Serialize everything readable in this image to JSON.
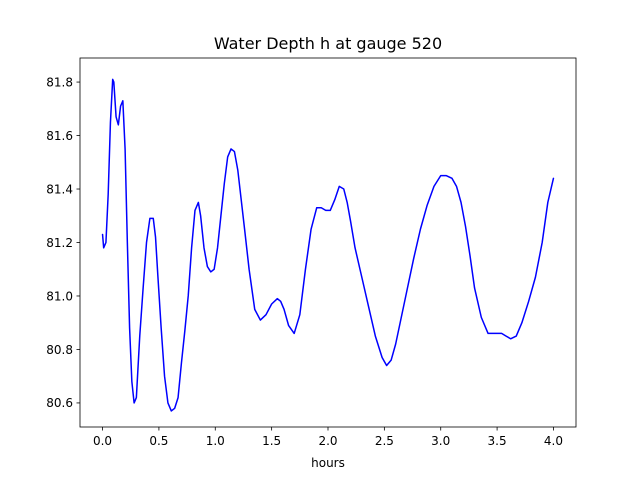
{
  "chart_data": {
    "type": "line",
    "title": "Water Depth h at gauge 520",
    "xlabel": "hours",
    "ylabel": "",
    "xlim": [
      -0.2,
      4.2
    ],
    "ylim": [
      80.51,
      81.89
    ],
    "xticks": [
      0.0,
      0.5,
      1.0,
      1.5,
      2.0,
      2.5,
      3.0,
      3.5,
      4.0
    ],
    "xtick_labels": [
      "0.0",
      "0.5",
      "1.0",
      "1.5",
      "2.0",
      "2.5",
      "3.0",
      "3.5",
      "4.0"
    ],
    "yticks": [
      80.6,
      80.8,
      81.0,
      81.2,
      81.4,
      81.6,
      81.8
    ],
    "ytick_labels": [
      "80.6",
      "80.8",
      "81.0",
      "81.2",
      "81.4",
      "81.6",
      "81.8"
    ],
    "grid": false,
    "series": [
      {
        "color": "#0000ff",
        "x": [
          0.0,
          0.01,
          0.03,
          0.05,
          0.07,
          0.09,
          0.1,
          0.12,
          0.14,
          0.16,
          0.18,
          0.2,
          0.22,
          0.24,
          0.26,
          0.28,
          0.3,
          0.33,
          0.36,
          0.39,
          0.42,
          0.45,
          0.47,
          0.49,
          0.52,
          0.55,
          0.58,
          0.61,
          0.64,
          0.67,
          0.7,
          0.73,
          0.76,
          0.79,
          0.82,
          0.85,
          0.87,
          0.9,
          0.93,
          0.96,
          0.99,
          1.02,
          1.05,
          1.08,
          1.11,
          1.14,
          1.17,
          1.2,
          1.23,
          1.26,
          1.3,
          1.35,
          1.4,
          1.45,
          1.5,
          1.55,
          1.58,
          1.61,
          1.65,
          1.7,
          1.75,
          1.8,
          1.85,
          1.9,
          1.94,
          1.98,
          2.02,
          2.06,
          2.1,
          2.14,
          2.17,
          2.2,
          2.24,
          2.3,
          2.36,
          2.42,
          2.48,
          2.52,
          2.56,
          2.6,
          2.64,
          2.7,
          2.76,
          2.82,
          2.88,
          2.94,
          3.0,
          3.05,
          3.1,
          3.14,
          3.18,
          3.22,
          3.26,
          3.3,
          3.36,
          3.42,
          3.48,
          3.54,
          3.58,
          3.62,
          3.67,
          3.72,
          3.78,
          3.84,
          3.9,
          3.95,
          4.0
        ],
        "y": [
          81.23,
          81.18,
          81.2,
          81.38,
          81.65,
          81.81,
          81.8,
          81.67,
          81.64,
          81.71,
          81.73,
          81.55,
          81.2,
          80.88,
          80.68,
          80.6,
          80.62,
          80.85,
          81.03,
          81.2,
          81.29,
          81.29,
          81.22,
          81.08,
          80.88,
          80.7,
          80.6,
          80.57,
          80.58,
          80.62,
          80.75,
          80.87,
          81.0,
          81.18,
          81.32,
          81.35,
          81.3,
          81.18,
          81.11,
          81.09,
          81.1,
          81.18,
          81.3,
          81.42,
          81.52,
          81.55,
          81.54,
          81.47,
          81.36,
          81.25,
          81.1,
          80.95,
          80.91,
          80.93,
          80.97,
          80.99,
          80.98,
          80.95,
          80.89,
          80.86,
          80.93,
          81.1,
          81.25,
          81.33,
          81.33,
          81.32,
          81.32,
          81.36,
          81.41,
          81.4,
          81.35,
          81.28,
          81.18,
          81.07,
          80.96,
          80.85,
          80.77,
          80.74,
          80.76,
          80.82,
          80.9,
          81.02,
          81.14,
          81.25,
          81.34,
          81.41,
          81.45,
          81.45,
          81.44,
          81.41,
          81.35,
          81.26,
          81.15,
          81.03,
          80.92,
          80.86,
          80.86,
          80.86,
          80.85,
          80.84,
          80.85,
          80.9,
          80.98,
          81.07,
          81.2,
          81.35,
          81.44
        ]
      }
    ]
  }
}
